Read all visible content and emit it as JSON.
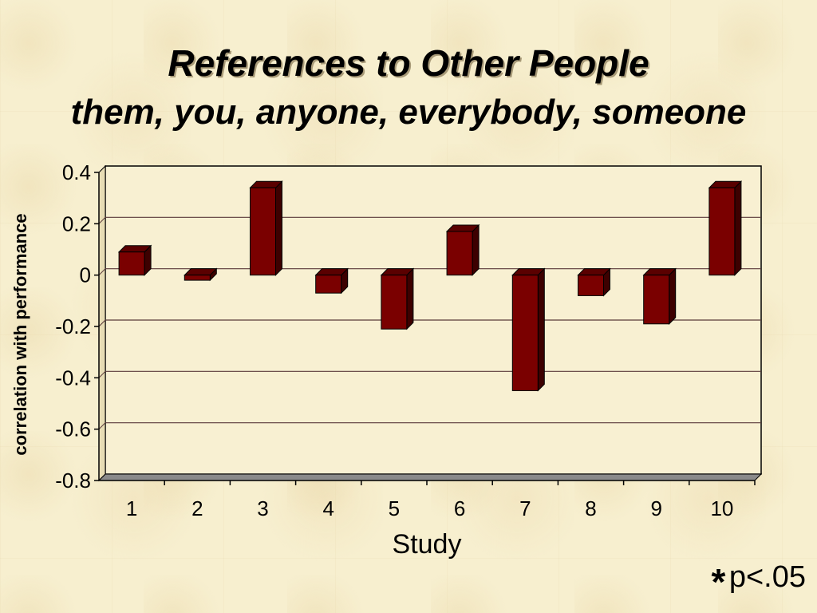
{
  "chart_data": {
    "type": "bar",
    "title": "References to Other People",
    "subtitle": "them, you, anyone, everybody, someone",
    "xlabel": "Study",
    "ylabel": "correlation with performance",
    "categories": [
      "1",
      "2",
      "3",
      "4",
      "5",
      "6",
      "7",
      "8",
      "9",
      "10"
    ],
    "values": [
      0.09,
      -0.02,
      0.34,
      -0.07,
      -0.21,
      0.17,
      -0.45,
      -0.08,
      -0.19,
      0.34
    ],
    "ylim": [
      -0.8,
      0.4
    ],
    "yticks": [
      "0.4",
      "0.2",
      "0",
      "-0.2",
      "-0.4",
      "-0.6",
      "-0.8"
    ],
    "grid": true,
    "bar_color": "#7a0000",
    "annotation": {
      "symbol": "*",
      "text": "p<.05"
    }
  }
}
